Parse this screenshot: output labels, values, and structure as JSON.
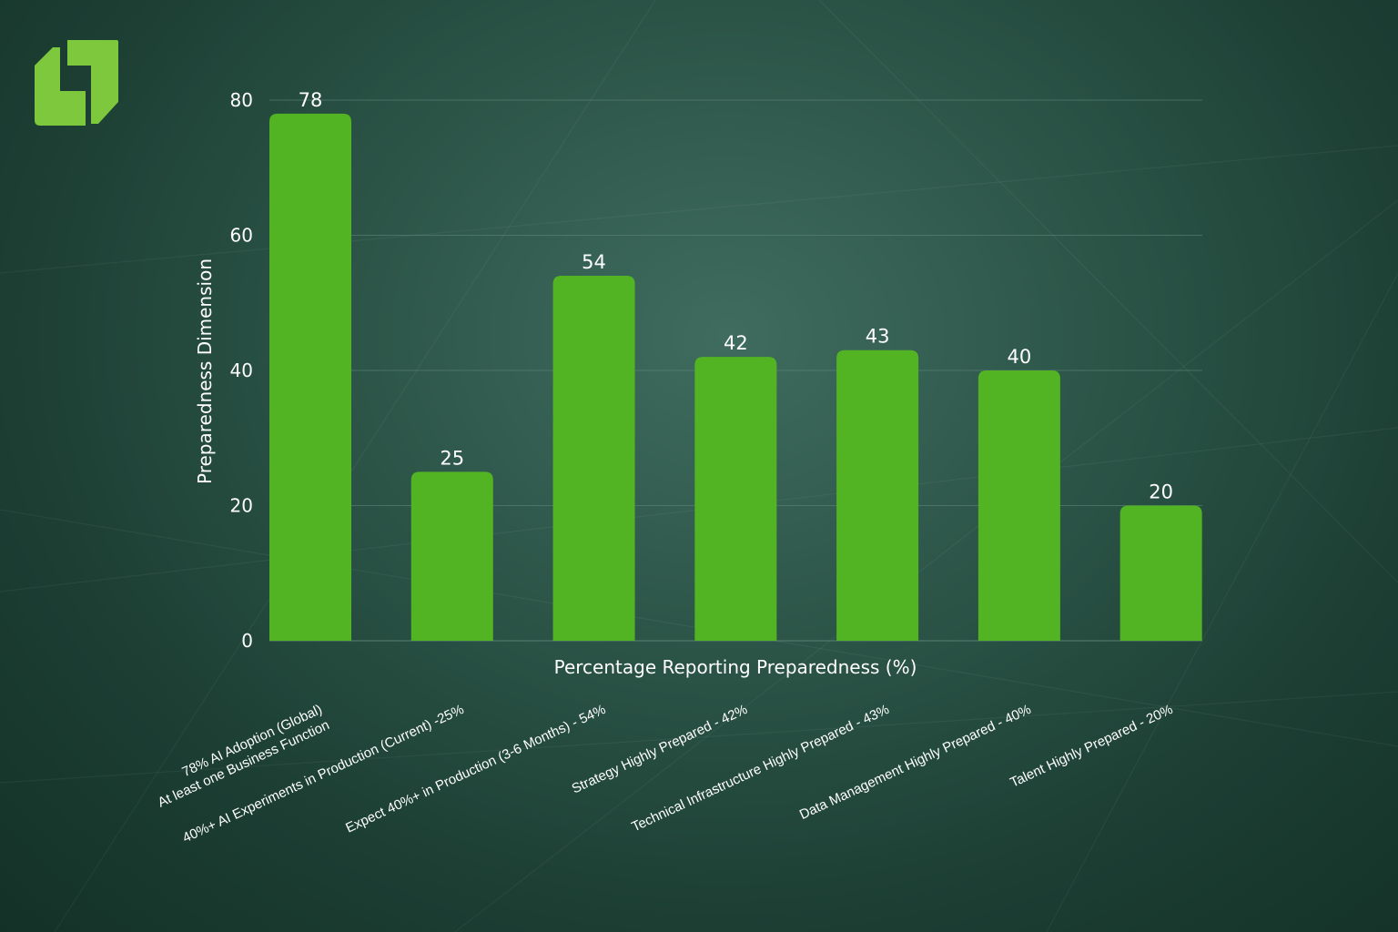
{
  "colors": {
    "bar": "#52b423",
    "grid": "#5f857a",
    "text": "#ffffff",
    "logo": "#7dc83c"
  },
  "logo": {
    "icon": "stylized-l-logo-icon"
  },
  "chart_data": {
    "type": "bar",
    "xlabel": "Percentage Reporting Preparedness (%)",
    "ylabel": "Preparedness Dimension",
    "ylim": [
      0,
      80
    ],
    "yticks": [
      0,
      20,
      40,
      60,
      80
    ],
    "grid": "horizontal",
    "legend": "none",
    "categories": [
      [
        "78% AI Adoption (Global)",
        "At least one Business Function"
      ],
      [
        "40%+ AI Experiments in Production (Current) -25%"
      ],
      [
        "Expect 40%+ in Production (3-6 Months) - 54%"
      ],
      [
        "Strategy Highly Prepared - 42%"
      ],
      [
        "Technical Infrastructure Highly Prepared - 43%"
      ],
      [
        "Data Management Highly Prepared - 40%"
      ],
      [
        "Talent Highly Prepared - 20%"
      ]
    ],
    "values": [
      78,
      25,
      54,
      42,
      43,
      40,
      20
    ]
  }
}
